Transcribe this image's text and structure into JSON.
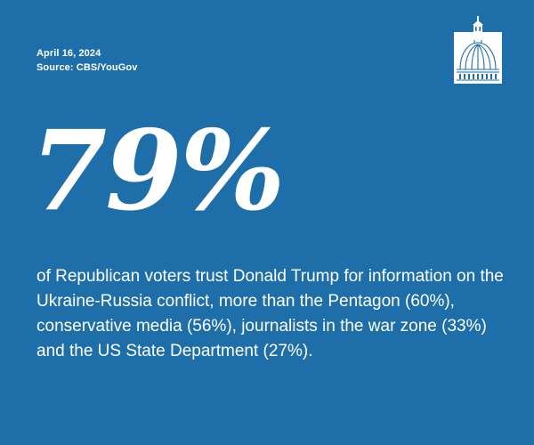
{
  "header": {
    "date": "April 16, 2024",
    "source": "Source: CBS/YouGov"
  },
  "logo": {
    "icon": "capitol-dome-icon"
  },
  "stat": {
    "value": "79%"
  },
  "description": {
    "text": "of Republican voters trust Donald Trump for information on the Ukraine-Russia conflict, more than the Pentagon (60%), conservative media (56%), journalists in the war zone (33%) and the US State Department (27%)."
  },
  "colors": {
    "background": "#1e6fa9",
    "text": "#ffffff"
  }
}
